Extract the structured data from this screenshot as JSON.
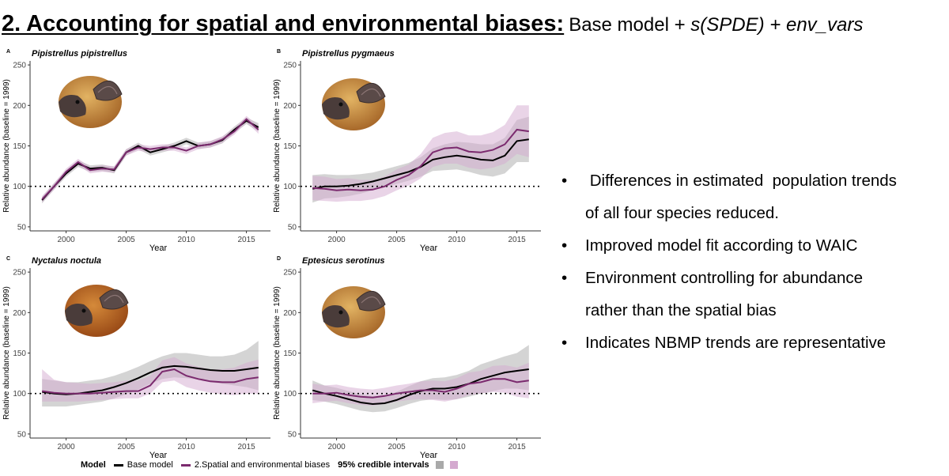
{
  "header": {
    "title": "2. Accounting for spatial and environmental biases:",
    "subtitle_plain": "Base model + ",
    "subtitle_italic": "s(SPDE) + env_vars"
  },
  "bullets": [
    {
      "text": " Differences in estimated  population trends",
      "cont": "of all four species reduced."
    },
    {
      "text": "Improved model fit according to WAIC",
      "cont": ""
    },
    {
      "text": "Environment controlling for abundance",
      "cont": "rather than the spatial bias"
    },
    {
      "text": "Indicates NBMP trends are representative",
      "cont": ""
    }
  ],
  "bullet_symbol": "•",
  "colors": {
    "base_line": "#000000",
    "spatial_line": "#7b2a6e",
    "base_band": "#a9a9a9",
    "spatial_band": "#d4a9cf"
  },
  "legend": {
    "title": "Model",
    "base_label": "Base model",
    "spatial_label": "2.Spatial and environmental biases",
    "ci_label": "95% credible intervals"
  },
  "chart_data": [
    {
      "type": "line",
      "panel": "A",
      "title": "Pipistrellus pipistrellus",
      "xlabel": "Year",
      "ylabel": "Relative abundance (baseline = 1999)",
      "xlim": [
        1997,
        2017
      ],
      "ylim": [
        45,
        255
      ],
      "xticks": [
        2000,
        2005,
        2010,
        2015
      ],
      "yticks": [
        50,
        100,
        150,
        200,
        250
      ],
      "reference_line": 100,
      "grid": false,
      "x": [
        1998,
        1999,
        2000,
        2001,
        2002,
        2003,
        2004,
        2005,
        2006,
        2007,
        2008,
        2009,
        2010,
        2011,
        2012,
        2013,
        2014,
        2015,
        2016
      ],
      "series": [
        {
          "name": "Base model",
          "values": [
            83,
            100,
            116,
            128,
            122,
            123,
            120,
            142,
            150,
            142,
            146,
            150,
            156,
            150,
            152,
            157,
            170,
            181,
            173
          ],
          "lower": [
            79,
            96,
            112,
            124,
            118,
            119,
            116,
            138,
            146,
            138,
            142,
            146,
            152,
            146,
            148,
            153,
            166,
            177,
            168
          ],
          "upper": [
            87,
            104,
            120,
            132,
            126,
            127,
            124,
            146,
            154,
            146,
            150,
            154,
            160,
            154,
            156,
            161,
            174,
            185,
            178
          ]
        },
        {
          "name": "2.Spatial and environmental biases",
          "values": [
            84,
            100,
            118,
            130,
            120,
            122,
            121,
            142,
            148,
            146,
            148,
            148,
            144,
            150,
            152,
            158,
            168,
            183,
            170
          ],
          "lower": [
            80,
            96,
            114,
            126,
            116,
            118,
            117,
            138,
            144,
            142,
            144,
            144,
            140,
            146,
            148,
            154,
            164,
            179,
            165
          ],
          "upper": [
            88,
            104,
            122,
            134,
            124,
            126,
            125,
            146,
            152,
            150,
            152,
            152,
            148,
            154,
            156,
            162,
            172,
            187,
            175
          ]
        }
      ]
    },
    {
      "type": "line",
      "panel": "B",
      "title": "Pipistrellus pygmaeus",
      "xlabel": "Year",
      "ylabel": "Relative abundance (baseline = 1999)",
      "xlim": [
        1997,
        2017
      ],
      "ylim": [
        45,
        255
      ],
      "xticks": [
        2000,
        2005,
        2010,
        2015
      ],
      "yticks": [
        50,
        100,
        150,
        200,
        250
      ],
      "reference_line": 100,
      "grid": false,
      "x": [
        1998,
        1999,
        2000,
        2001,
        2002,
        2003,
        2004,
        2005,
        2006,
        2007,
        2008,
        2009,
        2010,
        2011,
        2012,
        2013,
        2014,
        2015,
        2016
      ],
      "series": [
        {
          "name": "Base model",
          "values": [
            97,
            100,
            100,
            101,
            103,
            106,
            110,
            114,
            118,
            124,
            133,
            136,
            138,
            136,
            133,
            132,
            138,
            156,
            158
          ],
          "lower": [
            80,
            85,
            86,
            88,
            91,
            95,
            99,
            103,
            107,
            112,
            119,
            120,
            121,
            118,
            114,
            112,
            116,
            130,
            130
          ],
          "upper": [
            114,
            115,
            114,
            114,
            115,
            117,
            121,
            125,
            129,
            136,
            147,
            152,
            155,
            154,
            152,
            152,
            160,
            182,
            186
          ]
        },
        {
          "name": "2.Spatial and environmental biases",
          "values": [
            98,
            97,
            95,
            96,
            95,
            96,
            100,
            108,
            114,
            125,
            142,
            147,
            148,
            143,
            142,
            145,
            152,
            170,
            168
          ],
          "lower": [
            83,
            82,
            81,
            82,
            82,
            84,
            88,
            95,
            101,
            110,
            124,
            128,
            128,
            123,
            121,
            123,
            128,
            140,
            136
          ],
          "upper": [
            113,
            112,
            109,
            110,
            108,
            108,
            112,
            121,
            127,
            140,
            160,
            166,
            168,
            163,
            163,
            167,
            176,
            200,
            200
          ]
        }
      ]
    },
    {
      "type": "line",
      "panel": "C",
      "title": "Nyctalus noctula",
      "xlabel": "Year",
      "ylabel": "Relative abundance (baseline = 1999)",
      "xlim": [
        1997,
        2017
      ],
      "ylim": [
        45,
        255
      ],
      "xticks": [
        2000,
        2005,
        2010,
        2015
      ],
      "yticks": [
        50,
        100,
        150,
        200,
        250
      ],
      "reference_line": 100,
      "grid": false,
      "x": [
        1998,
        1999,
        2000,
        2001,
        2002,
        2003,
        2004,
        2005,
        2006,
        2007,
        2008,
        2009,
        2010,
        2011,
        2012,
        2013,
        2014,
        2015,
        2016
      ],
      "series": [
        {
          "name": "Base model",
          "values": [
            102,
            100,
            99,
            100,
            102,
            104,
            108,
            113,
            119,
            126,
            132,
            134,
            133,
            131,
            129,
            128,
            128,
            130,
            132
          ],
          "lower": [
            84,
            84,
            84,
            86,
            88,
            90,
            94,
            99,
            105,
            112,
            118,
            120,
            119,
            117,
            114,
            112,
            110,
            108,
            104
          ],
          "upper": [
            118,
            116,
            114,
            114,
            116,
            118,
            122,
            127,
            133,
            140,
            146,
            150,
            150,
            148,
            146,
            146,
            148,
            154,
            165
          ]
        },
        {
          "name": "2.Spatial and environmental biases",
          "values": [
            103,
            101,
            100,
            100,
            100,
            101,
            102,
            103,
            103,
            110,
            127,
            130,
            122,
            118,
            115,
            114,
            114,
            118,
            120
          ],
          "lower": [
            90,
            90,
            90,
            90,
            91,
            92,
            93,
            94,
            94,
            100,
            114,
            116,
            108,
            104,
            101,
            99,
            98,
            100,
            100
          ],
          "upper": [
            130,
            117,
            114,
            113,
            112,
            113,
            114,
            116,
            116,
            122,
            141,
            145,
            137,
            133,
            130,
            130,
            132,
            138,
            142
          ]
        }
      ]
    },
    {
      "type": "line",
      "panel": "D",
      "title": "Eptesicus serotinus",
      "xlabel": "Year",
      "ylabel": "Relative abundance (baseline = 1999)",
      "xlim": [
        1997,
        2017
      ],
      "ylim": [
        45,
        255
      ],
      "xticks": [
        2000,
        2005,
        2010,
        2015
      ],
      "yticks": [
        50,
        100,
        150,
        200,
        250
      ],
      "reference_line": 100,
      "grid": false,
      "x": [
        1998,
        1999,
        2000,
        2001,
        2002,
        2003,
        2004,
        2005,
        2006,
        2007,
        2008,
        2009,
        2010,
        2011,
        2012,
        2013,
        2014,
        2015,
        2016
      ],
      "series": [
        {
          "name": "Base model",
          "values": [
            104,
            100,
            97,
            93,
            89,
            87,
            88,
            92,
            98,
            103,
            106,
            106,
            108,
            112,
            118,
            122,
            126,
            128,
            130
          ],
          "lower": [
            92,
            90,
            87,
            83,
            79,
            77,
            78,
            82,
            87,
            91,
            93,
            92,
            93,
            96,
            100,
            103,
            106,
            106,
            104
          ],
          "upper": [
            116,
            110,
            107,
            103,
            99,
            97,
            98,
            102,
            109,
            115,
            119,
            120,
            123,
            128,
            136,
            141,
            146,
            150,
            160
          ]
        },
        {
          "name": "2.Spatial and environmental biases",
          "values": [
            100,
            100,
            101,
            98,
            96,
            95,
            97,
            100,
            102,
            104,
            104,
            102,
            106,
            112,
            114,
            118,
            118,
            114,
            116
          ],
          "lower": [
            88,
            90,
            91,
            88,
            86,
            85,
            87,
            90,
            92,
            93,
            92,
            90,
            93,
            98,
            100,
            102,
            101,
            96,
            94
          ],
          "upper": [
            112,
            110,
            111,
            108,
            106,
            105,
            107,
            110,
            112,
            115,
            116,
            115,
            119,
            126,
            128,
            134,
            135,
            132,
            138
          ]
        }
      ]
    }
  ]
}
